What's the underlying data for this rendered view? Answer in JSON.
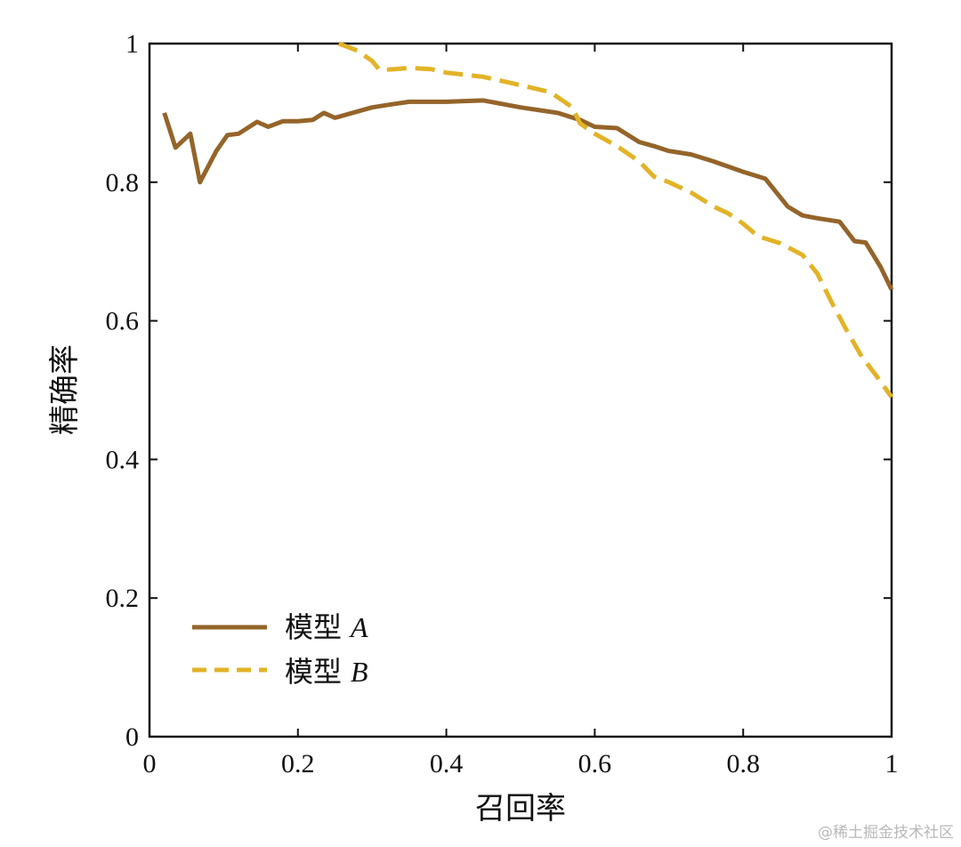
{
  "chart_data": {
    "type": "line",
    "xlabel": "召回率",
    "ylabel": "精确率",
    "xlim": [
      0,
      1
    ],
    "ylim": [
      0,
      1
    ],
    "xticks": [
      "0",
      "0.2",
      "0.4",
      "0.6",
      "0.8",
      "1"
    ],
    "yticks": [
      "0",
      "0.2",
      "0.4",
      "0.6",
      "0.8",
      "1"
    ],
    "grid": false,
    "legend_position": "bottom-left",
    "series": [
      {
        "name": "模型",
        "name_suffix": "A",
        "color": "#94642A",
        "style": "solid",
        "x": [
          0.02,
          0.035,
          0.055,
          0.068,
          0.09,
          0.105,
          0.12,
          0.145,
          0.16,
          0.18,
          0.2,
          0.22,
          0.235,
          0.25,
          0.3,
          0.33,
          0.35,
          0.4,
          0.45,
          0.5,
          0.55,
          0.58,
          0.6,
          0.63,
          0.66,
          0.68,
          0.7,
          0.73,
          0.76,
          0.8,
          0.83,
          0.86,
          0.88,
          0.9,
          0.93,
          0.95,
          0.965,
          0.985,
          1.0
        ],
        "y": [
          0.9,
          0.85,
          0.87,
          0.8,
          0.845,
          0.868,
          0.87,
          0.887,
          0.88,
          0.888,
          0.888,
          0.89,
          0.9,
          0.893,
          0.908,
          0.913,
          0.916,
          0.916,
          0.918,
          0.908,
          0.9,
          0.89,
          0.88,
          0.878,
          0.858,
          0.852,
          0.845,
          0.84,
          0.83,
          0.815,
          0.805,
          0.765,
          0.752,
          0.748,
          0.743,
          0.715,
          0.713,
          0.678,
          0.645
        ]
      },
      {
        "name": "模型",
        "name_suffix": "B",
        "color": "#E2B327",
        "style": "dashed",
        "x": [
          0.255,
          0.28,
          0.3,
          0.31,
          0.33,
          0.35,
          0.38,
          0.4,
          0.45,
          0.5,
          0.54,
          0.57,
          0.58,
          0.6,
          0.63,
          0.66,
          0.68,
          0.7,
          0.73,
          0.76,
          0.78,
          0.8,
          0.82,
          0.85,
          0.88,
          0.9,
          0.92,
          0.94,
          0.96,
          0.98,
          1.0
        ],
        "y": [
          1.0,
          0.99,
          0.975,
          0.962,
          0.963,
          0.965,
          0.963,
          0.958,
          0.952,
          0.94,
          0.93,
          0.908,
          0.885,
          0.87,
          0.852,
          0.83,
          0.808,
          0.8,
          0.785,
          0.765,
          0.755,
          0.74,
          0.722,
          0.712,
          0.695,
          0.668,
          0.625,
          0.585,
          0.548,
          0.52,
          0.49
        ]
      }
    ]
  },
  "watermark": "@稀土掘金技术社区"
}
